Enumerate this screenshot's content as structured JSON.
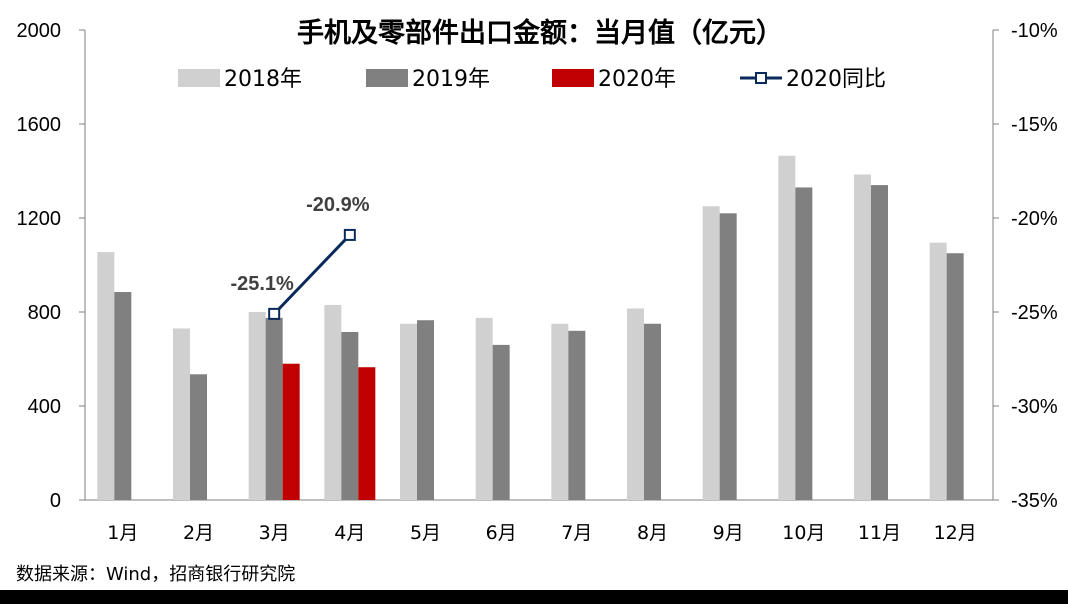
{
  "chart_data": {
    "type": "bar",
    "title": "手机及零部件出口金额：当月值（亿元）",
    "categories": [
      "1月",
      "2月",
      "3月",
      "4月",
      "5月",
      "6月",
      "7月",
      "8月",
      "9月",
      "10月",
      "11月",
      "12月"
    ],
    "series": [
      {
        "name": "2018年",
        "axis": "left",
        "color": "#d0d0d0",
        "values": [
          1055,
          730,
          800,
          830,
          750,
          775,
          750,
          815,
          1250,
          1465,
          1385,
          1095
        ]
      },
      {
        "name": "2019年",
        "axis": "left",
        "color": "#808080",
        "values": [
          885,
          535,
          775,
          715,
          765,
          660,
          720,
          750,
          1220,
          1330,
          1340,
          1050
        ]
      },
      {
        "name": "2020年",
        "axis": "left",
        "color": "#c00000",
        "values": [
          null,
          null,
          580,
          565,
          null,
          null,
          null,
          null,
          null,
          null,
          null,
          null
        ]
      },
      {
        "name": "2020同比",
        "axis": "right",
        "type": "line",
        "color": "#0b2a5c",
        "values": [
          null,
          null,
          -25.1,
          -20.9,
          null,
          null,
          null,
          null,
          null,
          null,
          null,
          null
        ],
        "labels": [
          null,
          null,
          "-25.1%",
          "-20.9%",
          null,
          null,
          null,
          null,
          null,
          null,
          null,
          null
        ]
      }
    ],
    "y_left": {
      "min": 0,
      "max": 2000,
      "ticks": [
        "0",
        "400",
        "800",
        "1200",
        "1600",
        "2000"
      ]
    },
    "y_right": {
      "min": -35,
      "max": -10,
      "ticks": [
        "-35%",
        "-30%",
        "-25%",
        "-20%",
        "-15%",
        "-10%"
      ]
    },
    "legend_position": "top",
    "source": "数据来源：Wind，招商银行研究院"
  }
}
